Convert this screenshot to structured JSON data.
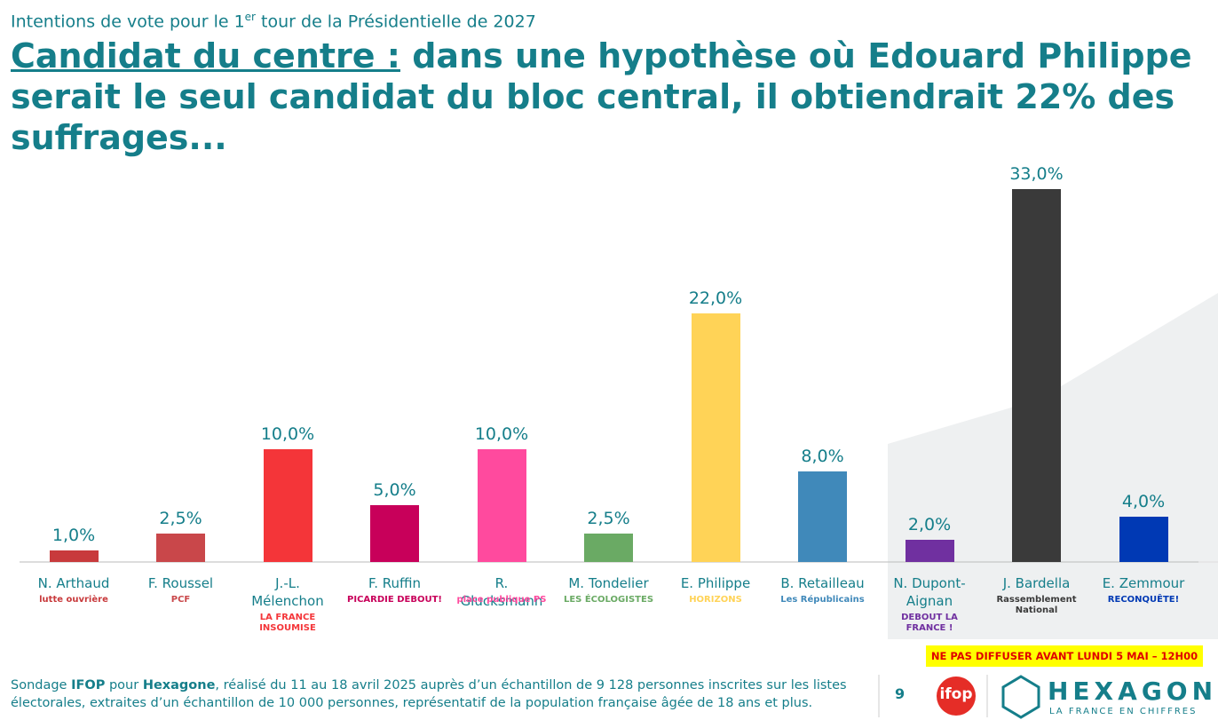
{
  "header": {
    "subtitle_parts": [
      "Intentions de vote pour le 1",
      "er",
      " tour de la Présidentielle de 2027"
    ],
    "title_underlined": "Candidat du centre :",
    "title_rest": " dans une hypothèse où Edouard Philippe serait le seul candidat du bloc central, il obtiendrait 22% des suffrages..."
  },
  "chart_data": {
    "type": "bar",
    "categories": [
      "N. Arthaud",
      "F. Roussel",
      "J.-L. Mélenchon",
      "F. Ruffin",
      "R. Glucksmann",
      "M. Tondelier",
      "E. Philippe",
      "B. Retailleau",
      "N. Dupont-Aignan",
      "J. Bardella",
      "E. Zemmour"
    ],
    "logos": [
      "lutte ouvrière",
      "PCF",
      "LA FRANCE INSOUMISE",
      "PICARDIE DEBOUT!",
      "place publique PS",
      "LES ÉCOLOGISTES",
      "HORIZONS",
      "Les Républicains",
      "DEBOUT LA FRANCE !",
      "Rassemblement National",
      "RECONQUÊTE!"
    ],
    "values": [
      1.0,
      2.5,
      10.0,
      5.0,
      10.0,
      2.5,
      22.0,
      8.0,
      2.0,
      33.0,
      4.0
    ],
    "value_labels": [
      "1,0%",
      "2,5%",
      "10,0%",
      "5,0%",
      "10,0%",
      "2,5%",
      "22,0%",
      "8,0%",
      "2,0%",
      "33,0%",
      "4,0%"
    ],
    "colors": [
      "#c83a3c",
      "#c9474a",
      "#f43539",
      "#c8005a",
      "#ff4a9e",
      "#6aaa64",
      "#ffd357",
      "#4089ba",
      "#7030a0",
      "#3a3a3a",
      "#0039b4"
    ]
  },
  "footer": {
    "source_parts": [
      "Sondage ",
      "IFOP",
      " pour ",
      "Hexagone",
      ", réalisé du 11 au 18 avril 2025 auprès d’un échantillon de 9 128 personnes inscrites sur les listes électorales, extraites d’un échantillon de 10 000 personnes, représentatif de la population française âgée de 18 ans et plus."
    ],
    "embargo": "NE PAS DIFFUSER AVANT LUNDI 5 MAI – 12H00",
    "page": "9",
    "ifop": "ifop",
    "brand": "HEXAGONE",
    "tagline": "LA FRANCE EN CHIFFRES"
  }
}
